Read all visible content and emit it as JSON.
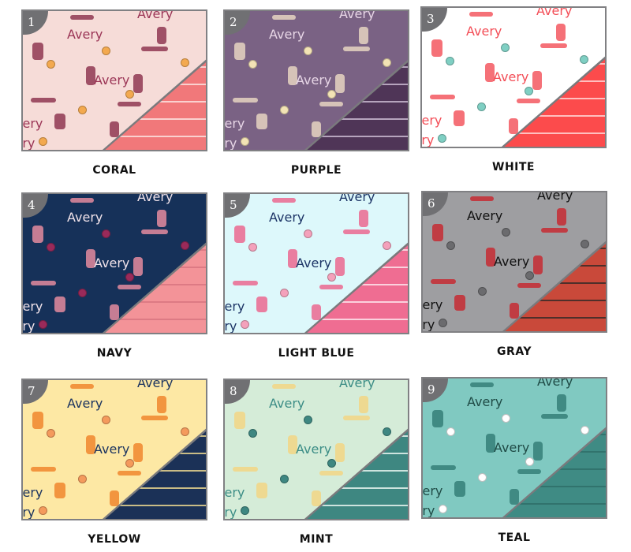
{
  "swatches": [
    {
      "number": "1",
      "label": "CORAL",
      "name_text": "Avery",
      "bg": "#f6dcd8",
      "stripe": "#f1787a",
      "stripe_line": "#fbe0de",
      "name_color": "#9b3556",
      "name_style": "script",
      "accent": "#8a2d4a",
      "ball": "#f3a94f"
    },
    {
      "number": "2",
      "label": "PURPLE",
      "name_text": "Avery",
      "bg": "#7a6284",
      "stripe": "#4f3557",
      "stripe_line": "#c8b7cf",
      "name_color": "#e7d6e6",
      "name_style": "serif",
      "accent": "#eddcc6",
      "ball": "#f3e3b5"
    },
    {
      "number": "3",
      "label": "WHITE",
      "name_text": "Avery",
      "bg": "#ffffff",
      "stripe": "#fc4b4c",
      "stripe_line": "#ffd4d4",
      "name_color": "#f34d56",
      "name_style": "script",
      "accent": "#f34d56",
      "ball": "#7fcfc3"
    },
    {
      "number": "4",
      "label": "NAVY",
      "name_text": "Avery",
      "bg": "#163159",
      "stripe": "#f39398",
      "stripe_line": "#d87680",
      "name_color": "#f1e3ea",
      "name_style": "sans",
      "accent": "#f191a3",
      "ball": "#9a2a5a"
    },
    {
      "number": "5",
      "label": "LIGHT BLUE",
      "name_text": "Avery",
      "bg": "#ddf8fb",
      "stripe": "#ef6d92",
      "stripe_line": "#fde3ea",
      "name_color": "#1c3466",
      "name_style": "serif-bold",
      "accent": "#ec5f8a",
      "ball": "#f4a1bb"
    },
    {
      "number": "6",
      "label": "GRAY",
      "name_text": "Avery",
      "bg": "#9e9ea1",
      "stripe": "#c9493a",
      "stripe_line": "#3a2a28",
      "name_color": "#111111",
      "name_style": "serif-bold",
      "accent": "#c8232c",
      "ball": "#6b6b6e"
    },
    {
      "number": "7",
      "label": "YELLOW",
      "name_text": "Avery",
      "bg": "#fde8a4",
      "stripe": "#1b3157",
      "stripe_line": "#e8d58e",
      "name_color": "#1c3460",
      "name_style": "script-bold",
      "accent": "#ef8026",
      "ball": "#f49a5c"
    },
    {
      "number": "8",
      "label": "MINT",
      "name_text": "Avery",
      "bg": "#d5ecd8",
      "stripe": "#3e8781",
      "stripe_line": "#e6f3ee",
      "name_color": "#3c8d86",
      "name_style": "script-bold",
      "accent": "#f4d57f",
      "ball": "#3e8781"
    },
    {
      "number": "9",
      "label": "TEAL",
      "name_text": "Avery",
      "bg": "#80c9c1",
      "stripe": "#3f8b84",
      "stripe_line": "#2f6f69",
      "name_color": "#1f4b46",
      "name_style": "script",
      "accent": "#2f7a73",
      "ball": "#ffffff"
    }
  ]
}
